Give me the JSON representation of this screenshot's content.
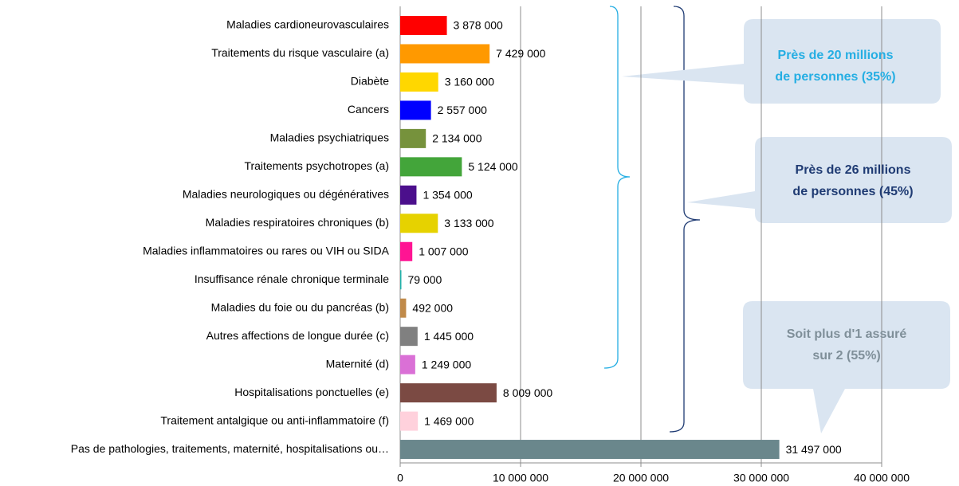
{
  "chart_data": {
    "type": "bar",
    "orientation": "horizontal",
    "categories": [
      "Maladies cardioneurovasculaires",
      "Traitements du risque vasculaire (a)",
      "Diabète",
      "Cancers",
      "Maladies psychiatriques",
      "Traitements psychotropes (a)",
      "Maladies neurologiques ou dégénératives",
      "Maladies respiratoires chroniques (b)",
      "Maladies inflammatoires ou rares ou VIH ou SIDA",
      "Insuffisance rénale chronique terminale",
      "Maladies du foie ou du pancréas (b)",
      "Autres affections de longue durée (c)",
      "Maternité (d)",
      "Hospitalisations ponctuelles (e)",
      "Traitement antalgique ou anti-inflammatoire (f)",
      "Pas de pathologies, traitements, maternité, hospitalisations ou…"
    ],
    "values": [
      3878000,
      7429000,
      3160000,
      2557000,
      2134000,
      5124000,
      1354000,
      3133000,
      1007000,
      79000,
      492000,
      1445000,
      1249000,
      8009000,
      1469000,
      31497000
    ],
    "value_labels": [
      "3 878 000",
      "7 429 000",
      "3 160 000",
      "2 557 000",
      "2 134 000",
      "5 124 000",
      "1 354 000",
      "3 133 000",
      "1 007 000",
      "79 000",
      "492 000",
      "1 445 000",
      "1 249 000",
      "8 009 000",
      "1 469 000",
      "31 497 000"
    ],
    "colors": [
      "#ff0000",
      "#ff9900",
      "#ffd700",
      "#0000ff",
      "#76923c",
      "#43a53a",
      "#4b0f8c",
      "#e6d200",
      "#ff1493",
      "#20b2aa",
      "#c08a4a",
      "#808080",
      "#da70d6",
      "#7b4a43",
      "#ffd1dc",
      "#6a878c"
    ],
    "xlim": [
      0,
      40000000
    ],
    "xticks": [
      0,
      {
        "value": 10000000,
        "label": "10 000 000"
      },
      {
        "value": 20000000,
        "label": "20 000 000"
      },
      {
        "value": 30000000,
        "label": "30 000 000"
      },
      {
        "value": 40000000,
        "label": "40 000 000"
      }
    ],
    "grid": true,
    "annotations": [
      {
        "lines": [
          "Près de 20 millions",
          "de personnes (35%)"
        ],
        "color": "#25aee3"
      },
      {
        "lines": [
          "Près de 26 millions",
          "de personnes (45%)"
        ],
        "color": "#1f3b73"
      },
      {
        "lines": [
          "Soit plus d'1 assuré",
          "sur 2 (55%)"
        ],
        "color": "#7f8f99"
      }
    ]
  }
}
